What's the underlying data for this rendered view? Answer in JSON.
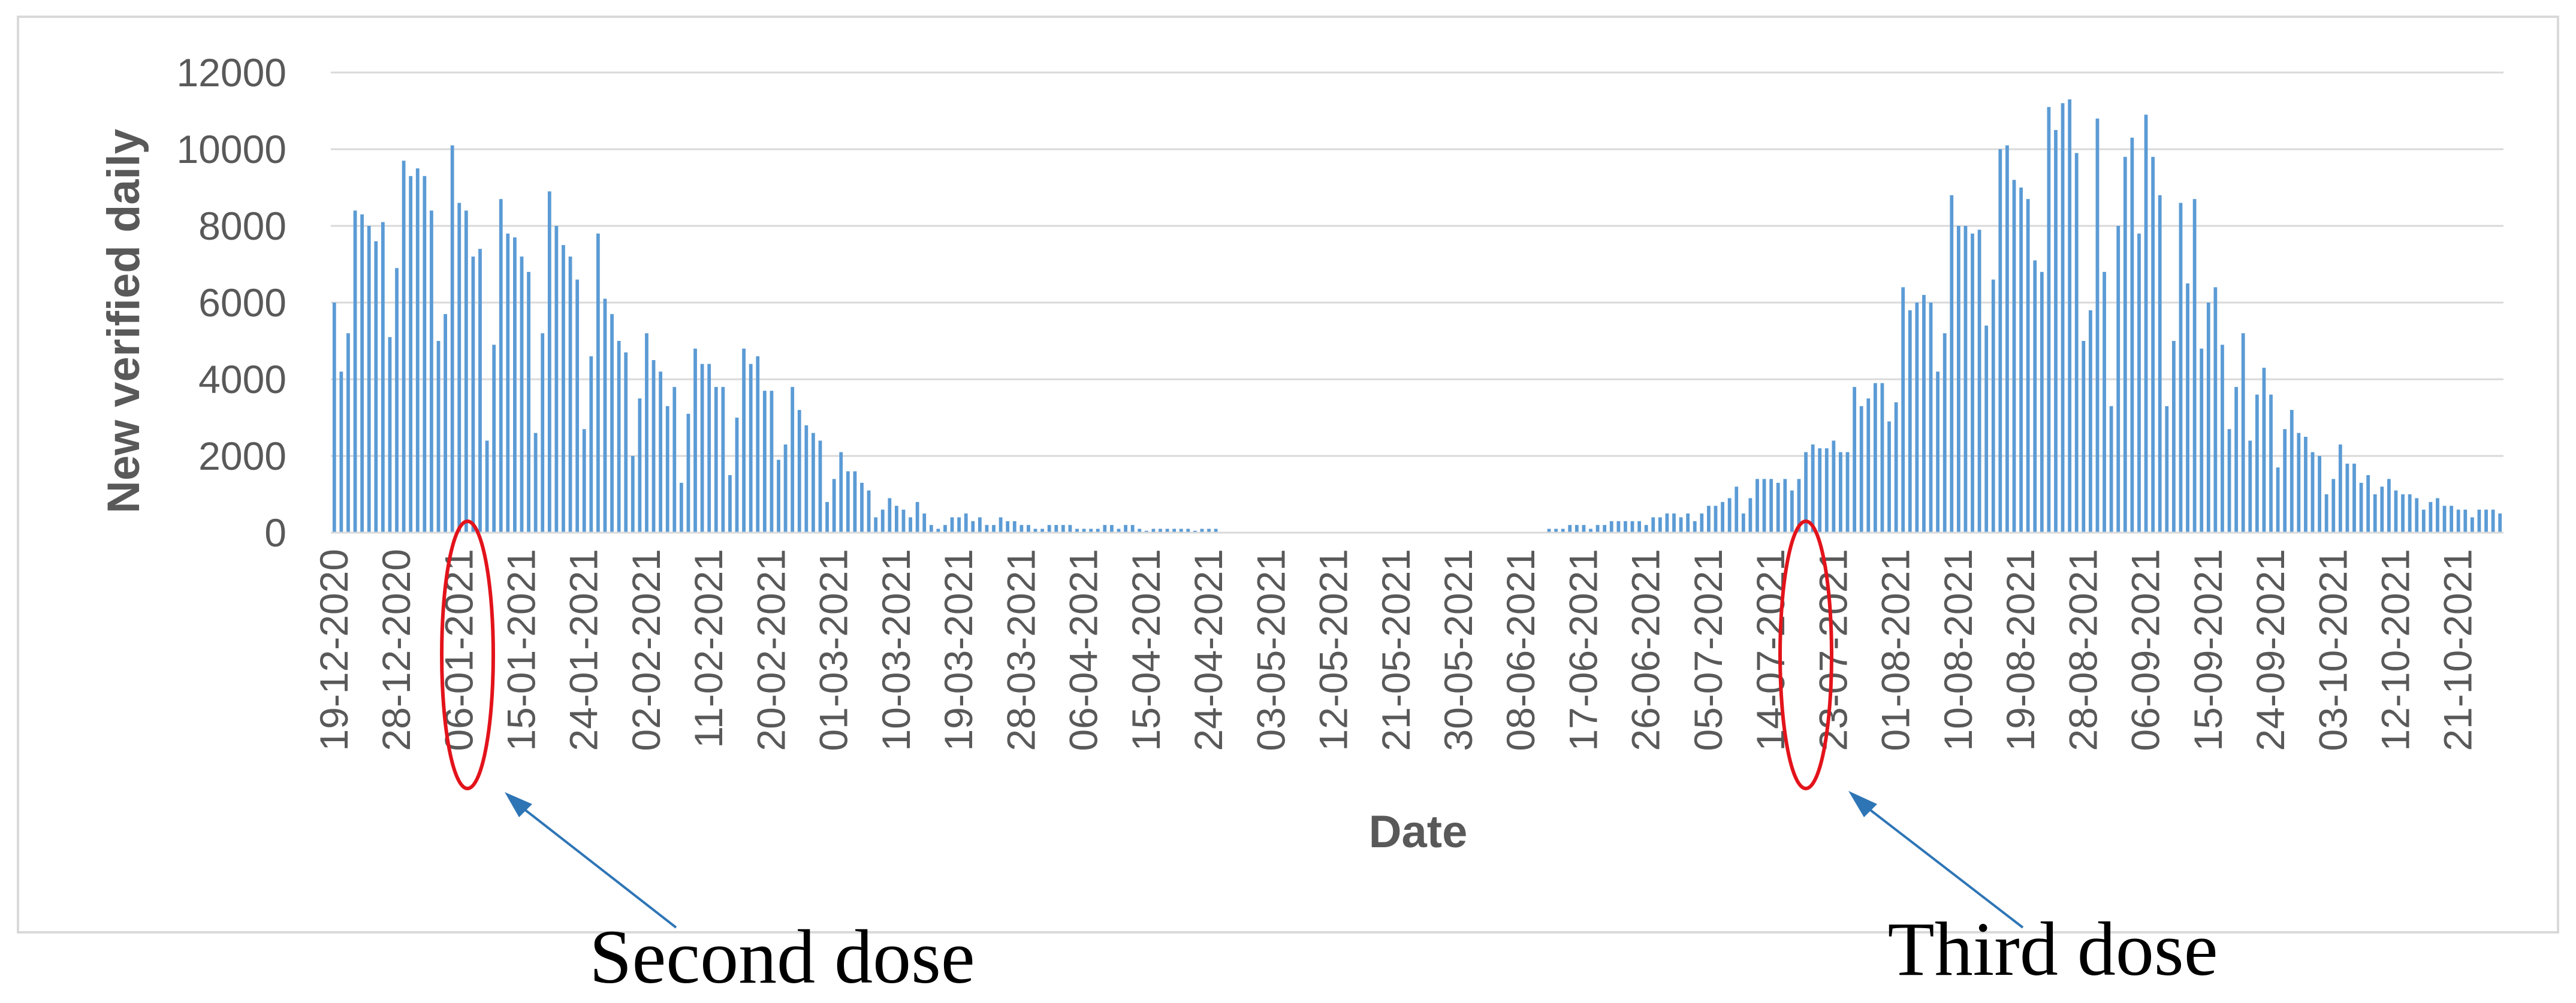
{
  "chart_data": {
    "type": "bar",
    "xlabel": "Date",
    "ylabel": "New verified daily",
    "ylim": [
      0,
      12000
    ],
    "yticks": [
      0,
      2000,
      4000,
      6000,
      8000,
      10000,
      12000
    ],
    "grid": "horizontal",
    "x_start": "2020-12-19",
    "x_end": "2021-10-22",
    "xtick_labels": [
      "19-12-2020",
      "28-12-2020",
      "06-01-2021",
      "15-01-2021",
      "24-01-2021",
      "02-02-2021",
      "11-02-2021",
      "20-02-2021",
      "01-03-2021",
      "10-03-2021",
      "19-03-2021",
      "28-03-2021",
      "06-04-2021",
      "15-04-2021",
      "24-04-2021",
      "03-05-2021",
      "12-05-2021",
      "21-05-2021",
      "30-05-2021",
      "08-06-2021",
      "17-06-2021",
      "26-06-2021",
      "05-07-2021",
      "14-07-2021",
      "23-07-2021",
      "01-08-2021",
      "10-08-2021",
      "19-08-2021",
      "28-08-2021",
      "06-09-2021",
      "15-09-2021",
      "24-09-2021",
      "03-10-2021",
      "12-10-2021",
      "21-10-2021"
    ],
    "series": [
      {
        "values": [
          6000,
          4200,
          5200,
          8400,
          8300,
          8000,
          7600,
          8100,
          5100,
          6900,
          9700,
          9300,
          9500,
          9300,
          8400,
          5000,
          5700,
          10100,
          8600,
          8400,
          7200,
          7400,
          2400,
          4900,
          8700,
          7800,
          7700,
          7200,
          6800,
          2600,
          5200,
          8900,
          8000,
          7500,
          7200,
          6600,
          2700,
          4600,
          7800,
          6100,
          5700,
          5000,
          4700,
          2000,
          3500,
          5200,
          4500,
          4200,
          3300,
          3800,
          1300,
          3100,
          4800,
          4400,
          4400,
          3800,
          3800,
          1500,
          3000,
          4800,
          4400,
          4600,
          3700,
          3700,
          1900,
          2300,
          3800,
          3200,
          2800,
          2600,
          2400,
          800,
          1400,
          2100,
          1600,
          1600,
          1300,
          1100,
          400,
          600,
          900,
          700,
          600,
          400,
          800,
          500,
          200,
          100,
          200,
          400,
          400,
          500,
          300,
          400,
          200,
          200,
          400,
          300,
          300,
          200,
          200,
          100,
          100,
          200,
          200,
          200,
          200,
          100,
          100,
          100,
          100,
          200,
          200,
          100,
          200,
          200,
          100,
          50,
          100,
          100,
          100,
          100,
          100,
          100,
          50,
          100,
          100,
          100,
          0,
          0,
          0,
          0,
          0,
          0,
          0,
          0,
          0,
          0,
          0,
          0,
          0,
          0,
          0,
          0,
          0,
          0,
          0,
          0,
          0,
          0,
          0,
          0,
          0,
          0,
          0,
          0,
          0,
          0,
          0,
          0,
          0,
          0,
          0,
          0,
          0,
          0,
          0,
          0,
          0,
          0,
          0,
          0,
          0,
          0,
          0,
          100,
          100,
          100,
          200,
          200,
          200,
          100,
          200,
          200,
          300,
          300,
          300,
          300,
          300,
          200,
          400,
          400,
          500,
          500,
          400,
          500,
          300,
          500,
          700,
          700,
          800,
          900,
          1200,
          500,
          900,
          1400,
          1400,
          1400,
          1300,
          1400,
          1100,
          1400,
          2100,
          2300,
          2200,
          2200,
          2400,
          2100,
          2100,
          3800,
          3300,
          3500,
          3900,
          3900,
          2900,
          3400,
          6400,
          5800,
          6000,
          6200,
          6000,
          4200,
          5200,
          8800,
          8000,
          8000,
          7800,
          7900,
          5400,
          6600,
          10000,
          10100,
          9200,
          9000,
          8700,
          7100,
          6800,
          11100,
          10500,
          11200,
          11300,
          9900,
          5000,
          5800,
          10800,
          6800,
          3300,
          8000,
          9800,
          10300,
          7800,
          10900,
          9800,
          8800,
          3300,
          5000,
          8600,
          6500,
          8700,
          4800,
          6000,
          6400,
          4900,
          2700,
          3800,
          5200,
          2400,
          3600,
          4300,
          3600,
          1700,
          2700,
          3200,
          2600,
          2500,
          2100,
          2000,
          1000,
          1400,
          2300,
          1800,
          1800,
          1300,
          1500,
          1000,
          1200,
          1400,
          1100,
          1000,
          1000,
          900,
          600,
          800,
          900,
          700,
          700,
          600,
          600,
          400,
          600,
          600,
          600,
          500
        ]
      }
    ],
    "bar_color": "#5b9bd5",
    "annotation_color": "#e3131b",
    "arrow_color": "#2e75b6"
  },
  "annotations": {
    "second_dose": "Second dose",
    "third_dose": "Third dose"
  }
}
